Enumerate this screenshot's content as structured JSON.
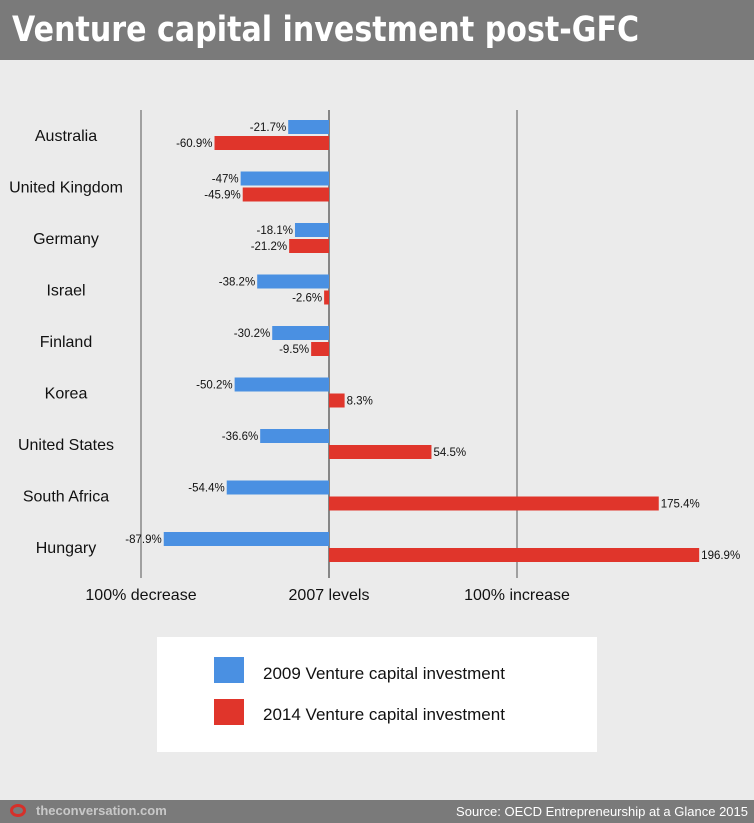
{
  "header": {
    "title": "Venture capital investment post-GFC"
  },
  "chart_data": {
    "type": "bar",
    "orientation": "horizontal",
    "categories": [
      "Australia",
      "United Kingdom",
      "Germany",
      "Israel",
      "Finland",
      "Korea",
      "United States",
      "South Africa",
      "Hungary"
    ],
    "series": [
      {
        "name": "2009 Venture capital investment",
        "color": "#4a90e2",
        "values": [
          -21.7,
          -47,
          -18.1,
          -38.2,
          -30.2,
          -50.2,
          -36.6,
          -54.4,
          -87.9
        ],
        "labels": [
          "-21.7%",
          "-47%",
          "-18.1%",
          "-38.2%",
          "-30.2%",
          "-50.2%",
          "-36.6%",
          "-54.4%",
          "-87.9%"
        ]
      },
      {
        "name": "2014 Venture capital investment",
        "color": "#e0352b",
        "values": [
          -60.9,
          -45.9,
          -21.2,
          -2.6,
          -9.5,
          8.3,
          54.5,
          175.4,
          196.9
        ],
        "labels": [
          "-60.9%",
          "-45.9%",
          "-21.2%",
          "-2.6%",
          "-9.5%",
          "8.3%",
          "54.5%",
          "175.4%",
          "196.9%"
        ]
      }
    ],
    "xlim": [
      -100,
      200
    ],
    "gridlines": [
      {
        "value": -100,
        "label": "100% decrease"
      },
      {
        "value": 0,
        "label": "2007 levels"
      },
      {
        "value": 100,
        "label": "100% increase"
      }
    ],
    "legend_position": "bottom"
  },
  "footer": {
    "brand": "theconversation.com",
    "source": "Source: OECD Entrepreneurship at a Glance 2015"
  }
}
